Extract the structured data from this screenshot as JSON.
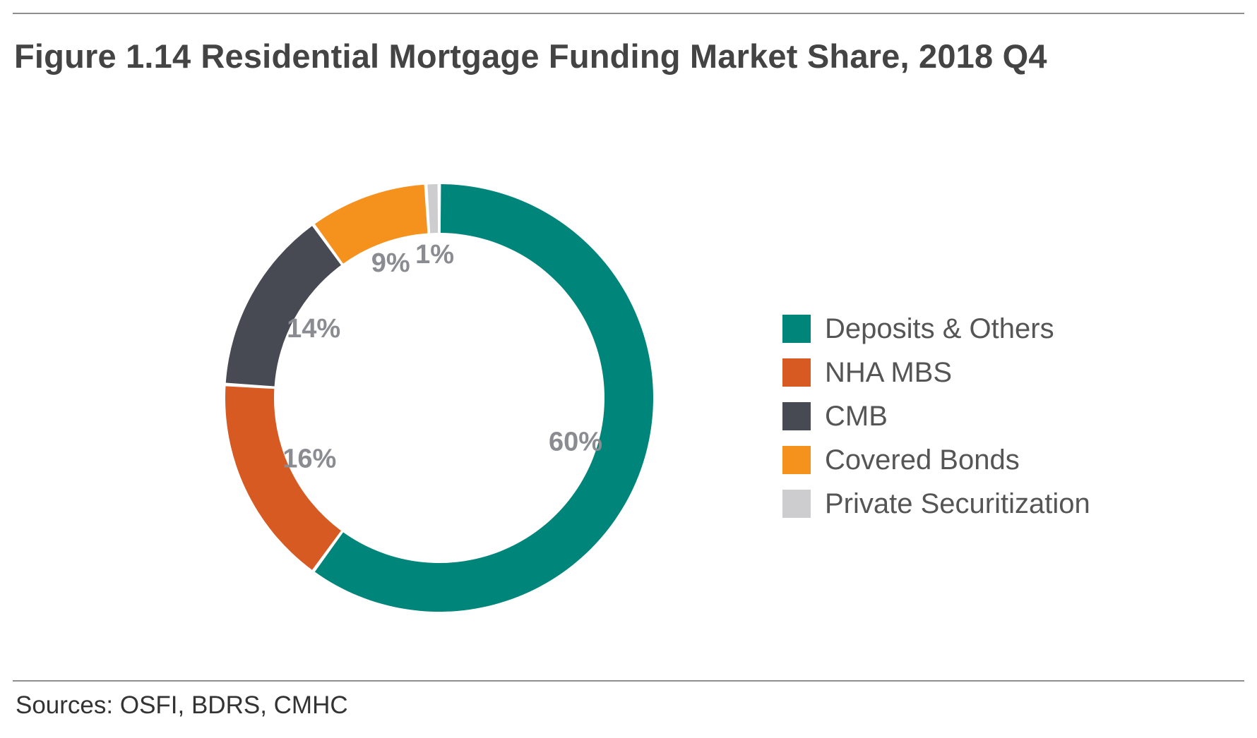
{
  "figure": {
    "number": "Figure 1.14",
    "title": "Residential Mortgage Funding Market Share, 2018 Q4",
    "source": "Sources: OSFI, BDRS, CMHC"
  },
  "chart_data": {
    "type": "pie",
    "variant": "donut",
    "title": "Residential Mortgage Funding Market Share, 2018 Q4",
    "legend_position": "right",
    "slices": [
      {
        "name": "Deposits & Others",
        "value": 60,
        "label": "60%",
        "color": "#00857a"
      },
      {
        "name": "NHA MBS",
        "value": 16,
        "label": "16%",
        "color": "#d75a22"
      },
      {
        "name": "CMB",
        "value": 14,
        "label": "14%",
        "color": "#474a52"
      },
      {
        "name": "Covered Bonds",
        "value": 9,
        "label": "9%",
        "color": "#f5921e"
      },
      {
        "name": "Private Securitization",
        "value": 1,
        "label": "1%",
        "color": "#cdcdd0"
      }
    ],
    "data_label_color": "#8a8c91"
  }
}
